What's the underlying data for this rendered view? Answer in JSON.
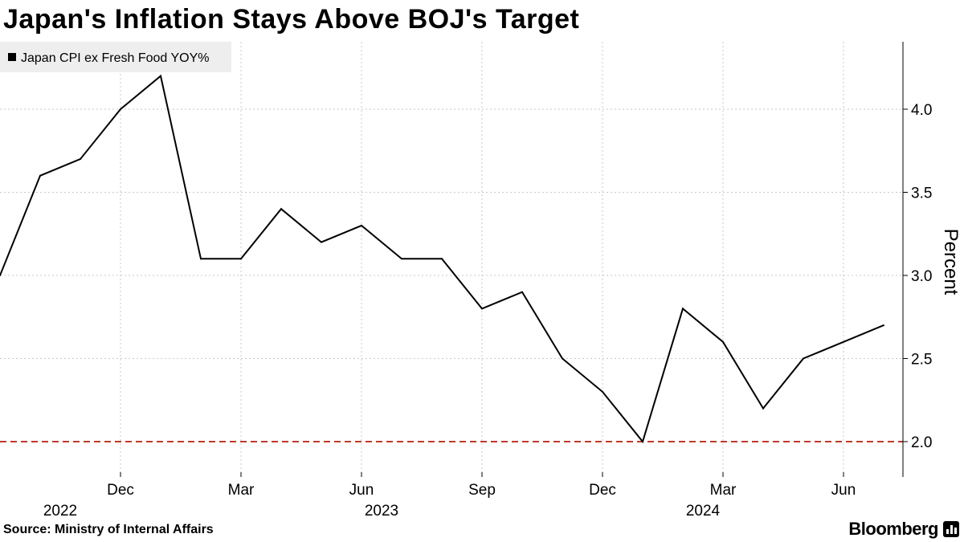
{
  "chart_data": {
    "type": "line",
    "title": "Japan's Inflation Stays Above BOJ's Target",
    "legend": "Japan CPI ex Fresh Food YOY%",
    "ylabel": "Percent",
    "ylim": [
      1.8,
      4.4
    ],
    "yticks": [
      "2.0",
      "2.5",
      "3.0",
      "3.5",
      "4.0"
    ],
    "xlim": [
      "2022-09",
      "2024-07"
    ],
    "month_labels": [
      {
        "month": "2022-12",
        "label": "Dec"
      },
      {
        "month": "2023-03",
        "label": "Mar"
      },
      {
        "month": "2023-06",
        "label": "Jun"
      },
      {
        "month": "2023-09",
        "label": "Sep"
      },
      {
        "month": "2023-12",
        "label": "Dec"
      },
      {
        "month": "2024-03",
        "label": "Mar"
      },
      {
        "month": "2024-06",
        "label": "Jun"
      }
    ],
    "year_labels": [
      {
        "month": "2022-10",
        "label": "2022"
      },
      {
        "month": "2023-06",
        "label": "2023"
      },
      {
        "month": "2024-02",
        "label": "2024"
      }
    ],
    "series": [
      {
        "name": "Japan CPI ex Fresh Food YOY%",
        "color": "#000000",
        "x": [
          "2022-09",
          "2022-10",
          "2022-11",
          "2022-12",
          "2023-01",
          "2023-02",
          "2023-03",
          "2023-04",
          "2023-05",
          "2023-06",
          "2023-07",
          "2023-08",
          "2023-09",
          "2023-10",
          "2023-11",
          "2023-12",
          "2024-01",
          "2024-02",
          "2024-03",
          "2024-04",
          "2024-05",
          "2024-06",
          "2024-07"
        ],
        "values": [
          3.0,
          3.6,
          3.7,
          4.0,
          4.2,
          3.1,
          3.1,
          3.4,
          3.2,
          3.3,
          3.1,
          3.1,
          2.8,
          2.9,
          2.5,
          2.3,
          2.0,
          2.8,
          2.6,
          2.2,
          2.5,
          2.6,
          2.7
        ]
      }
    ],
    "reference_line": {
      "value": 2.0,
      "color": "#c0392b",
      "style": "dashed"
    },
    "grid": true
  },
  "source": {
    "label": "Source:",
    "text": "Ministry of Internal Affairs"
  },
  "brand": "Bloomberg"
}
